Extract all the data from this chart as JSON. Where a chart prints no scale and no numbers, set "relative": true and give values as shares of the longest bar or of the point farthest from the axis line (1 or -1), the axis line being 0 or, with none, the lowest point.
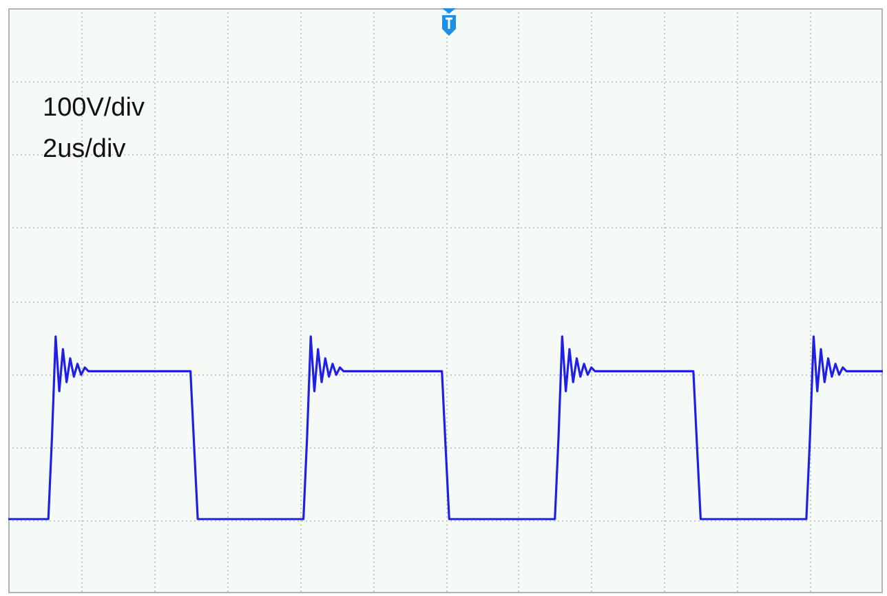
{
  "chart_data": {
    "type": "line",
    "relative": true,
    "grid": true,
    "color": "#1f1fe6",
    "annotations": [
      "100V/div",
      "2us/div"
    ],
    "categories": [
      null,
      null,
      null,
      null,
      null,
      null,
      null,
      null,
      null,
      null,
      null,
      null,
      null,
      null,
      null,
      null,
      null,
      null,
      null,
      null,
      null,
      null,
      null,
      null,
      null,
      null,
      null,
      null,
      null,
      null,
      null,
      null,
      null,
      null,
      null,
      null,
      null,
      null,
      null,
      null,
      null,
      null,
      null,
      null,
      null,
      null,
      null,
      null,
      null,
      null,
      null,
      null,
      null,
      null,
      null,
      null,
      null,
      null,
      null,
      null,
      null,
      null,
      null,
      null,
      null,
      null,
      null,
      null,
      null,
      null,
      null,
      null,
      null,
      null,
      null,
      null,
      null,
      null,
      null,
      null,
      null,
      null,
      null,
      null,
      null,
      null,
      null,
      null,
      null,
      null,
      null,
      null,
      null,
      null,
      null,
      null,
      null,
      null,
      null,
      null,
      null,
      null,
      null,
      null,
      null,
      null,
      null,
      null,
      null,
      null,
      null,
      null,
      null,
      null,
      null,
      null,
      null,
      null,
      null,
      null,
      null,
      null,
      null,
      null,
      null,
      null,
      null,
      null,
      null,
      null,
      null,
      null,
      null,
      null,
      null,
      null,
      null,
      null,
      null,
      null,
      null,
      null,
      null,
      null,
      null,
      null,
      null,
      null,
      null,
      null,
      null,
      null,
      null,
      null,
      null,
      null,
      null,
      null,
      null,
      null,
      null,
      null,
      null,
      null,
      null,
      null,
      null,
      null,
      null,
      null,
      null,
      null,
      null,
      null,
      null,
      null,
      null,
      null,
      null,
      null,
      null,
      null,
      null,
      null,
      null,
      null,
      null,
      null,
      null,
      null,
      null,
      null,
      null,
      null,
      null,
      null,
      null,
      null,
      null,
      null,
      null,
      null,
      null,
      null,
      null,
      null,
      null,
      null,
      null,
      null,
      null,
      null,
      null,
      null,
      null,
      null,
      null,
      null,
      null,
      null,
      null,
      null,
      null,
      null,
      null,
      null,
      null,
      null,
      null,
      null,
      null,
      null,
      null,
      null,
      null,
      null,
      null,
      null,
      null,
      null,
      null
    ],
    "values": [
      0,
      0,
      0,
      0,
      0,
      0,
      0,
      0,
      0,
      0,
      0,
      0,
      0.45,
      1,
      0.7,
      0.93,
      0.75,
      0.88,
      0.78,
      0.85,
      0.79,
      0.83,
      0.81,
      0.81,
      0.81,
      0.81,
      0.81,
      0.81,
      0.81,
      0.81,
      0.81,
      0.81,
      0.81,
      0.81,
      0.81,
      0.81,
      0.81,
      0.81,
      0.81,
      0.81,
      0.81,
      0.81,
      0.81,
      0.81,
      0.81,
      0.81,
      0.81,
      0.81,
      0.81,
      0.81,
      0.81,
      0.4,
      0,
      0,
      0,
      0,
      0,
      0,
      0,
      0,
      0,
      0,
      0,
      0,
      0,
      0,
      0,
      0,
      0,
      0,
      0,
      0,
      0,
      0,
      0,
      0,
      0,
      0,
      0,
      0,
      0,
      0,
      0.45,
      1,
      0.7,
      0.93,
      0.75,
      0.88,
      0.78,
      0.85,
      0.79,
      0.83,
      0.81,
      0.81,
      0.81,
      0.81,
      0.81,
      0.81,
      0.81,
      0.81,
      0.81,
      0.81,
      0.81,
      0.81,
      0.81,
      0.81,
      0.81,
      0.81,
      0.81,
      0.81,
      0.81,
      0.81,
      0.81,
      0.81,
      0.81,
      0.81,
      0.81,
      0.81,
      0.81,
      0.81,
      0.4,
      0,
      0,
      0,
      0,
      0,
      0,
      0,
      0,
      0,
      0,
      0,
      0,
      0,
      0,
      0,
      0,
      0,
      0,
      0,
      0,
      0,
      0,
      0,
      0,
      0,
      0,
      0,
      0,
      0,
      0,
      0.45,
      1,
      0.7,
      0.93,
      0.75,
      0.88,
      0.78,
      0.85,
      0.79,
      0.83,
      0.81,
      0.81,
      0.81,
      0.81,
      0.81,
      0.81,
      0.81,
      0.81,
      0.81,
      0.81,
      0.81,
      0.81,
      0.81,
      0.81,
      0.81,
      0.81,
      0.81,
      0.81,
      0.81,
      0.81,
      0.81,
      0.81,
      0.81,
      0.81,
      0.81,
      0.81,
      0.81,
      0.81,
      0.4,
      0,
      0,
      0,
      0,
      0,
      0,
      0,
      0,
      0,
      0,
      0,
      0,
      0,
      0,
      0,
      0,
      0,
      0,
      0,
      0,
      0,
      0,
      0,
      0,
      0,
      0,
      0,
      0,
      0,
      0,
      0.45,
      1,
      0.7,
      0.93,
      0.75,
      0.88,
      0.78,
      0.85,
      0.79,
      0.83,
      0.81,
      0.81,
      0.81,
      0.81,
      0.81,
      0.81,
      0.81,
      0.81,
      0.81,
      0.81,
      0.81
    ]
  }
}
